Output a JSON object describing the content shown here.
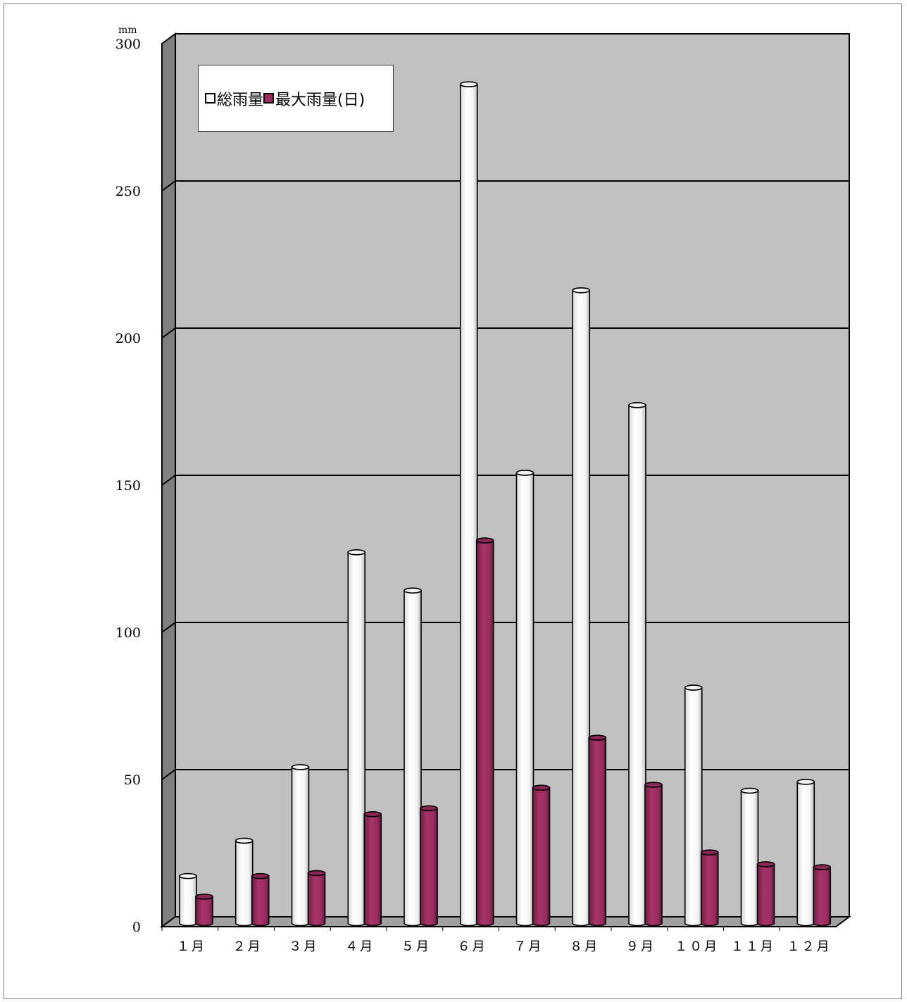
{
  "chart_data": {
    "type": "bar",
    "unit_label": "mm",
    "categories": [
      "１月",
      "２月",
      "３月",
      "４月",
      "５月",
      "６月",
      "７月",
      "８月",
      "９月",
      "１０月",
      "１１月",
      "１２月"
    ],
    "series": [
      {
        "name": "総雨量",
        "color": "#ffffff",
        "values": [
          16,
          28,
          53,
          126,
          113,
          285,
          153,
          215,
          176,
          80,
          45,
          48
        ]
      },
      {
        "name": "最大雨量(日)",
        "color": "#9b2c62",
        "values": [
          9,
          16,
          17,
          37,
          39,
          130,
          46,
          63,
          47,
          24,
          20,
          19
        ]
      }
    ],
    "ylim": [
      0,
      300
    ],
    "yticks": [
      0,
      50,
      100,
      150,
      200,
      250,
      300
    ],
    "grid": true,
    "legend_position": "top-left"
  }
}
